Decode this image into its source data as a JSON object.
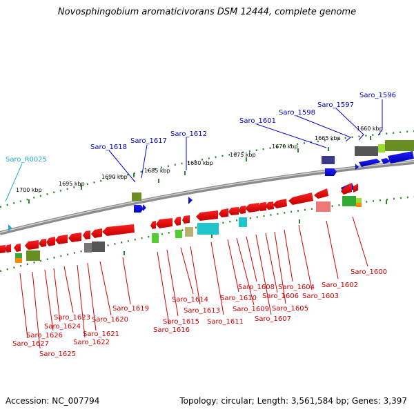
{
  "title": "Novosphingobium aromaticivorans DSM 12444, complete genome",
  "footer": {
    "accession": "Accession: NC_007794",
    "info": "Topology: circular; Length: 3,561,584 bp; Genes: 3,397"
  },
  "ruler_ticks": [
    "1700 kbp",
    "1695 kbp",
    "1690 kbp",
    "1685 kbp",
    "1680 kbp",
    "1675 kbp",
    "1670 kbp",
    "1665 kbp",
    "1660 kbp"
  ],
  "top_labels": [
    "Saro_R0025",
    "Saro_1618",
    "Saro_1617",
    "Saro_1612",
    "Saro_1601",
    "Saro_1598",
    "Saro_1597",
    "Saro_1596"
  ],
  "bottom_labels": [
    "Saro_1627",
    "Saro_1626",
    "Saro_1625",
    "Saro_1624",
    "Saro_1623",
    "Saro_1622",
    "Saro_1621",
    "Saro_1620",
    "Saro_1619",
    "Saro_1616",
    "Saro_1615",
    "Saro_1614",
    "Saro_1613",
    "Saro_1611",
    "Saro_1610",
    "Saro_1609",
    "Saro_1608",
    "Saro_1607",
    "Saro_1606",
    "Saro_1605",
    "Saro_1604",
    "Saro_1603",
    "Saro_1602",
    "Saro_1600"
  ],
  "colors": {
    "forward_gene": "#0000ee",
    "reverse_gene": "#ee0000",
    "rna": "#22aacc",
    "backbone": "#8c8c8c"
  }
}
